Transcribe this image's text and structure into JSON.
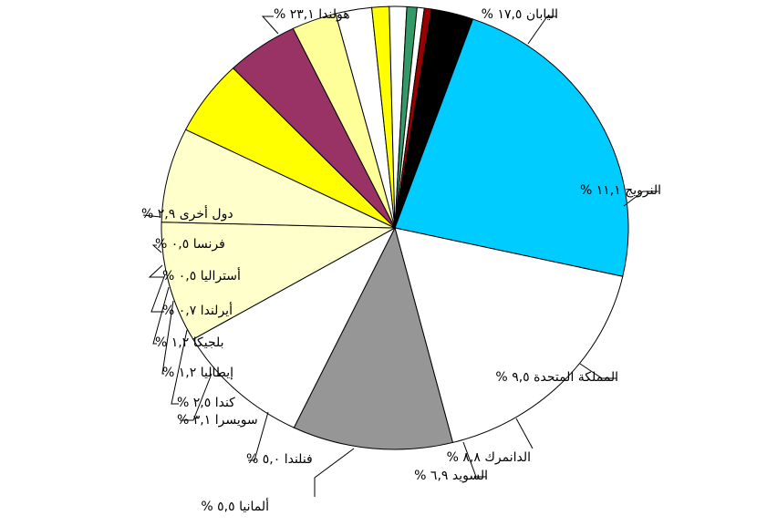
{
  "chart_data": {
    "type": "pie",
    "categories": [
      "هولندا",
      "اليابان",
      "النرويج",
      "المملكة المتحدة",
      "الدانمرك",
      "السويد",
      "ألمانيا",
      "فنلندا",
      "سويسرا",
      "كندا",
      "إيطاليا",
      "بلجيكا",
      "أيرلندا",
      "أستراليا",
      "فرنسا",
      "دول أخرى"
    ],
    "values": [
      23.1,
      17.5,
      11.1,
      9.5,
      8.8,
      6.9,
      5.5,
      5.0,
      3.1,
      2.5,
      1.2,
      1.2,
      0.7,
      0.5,
      0.5,
      2.9
    ],
    "labels": [
      "هولندا ٢٣,١ %",
      "اليابان ١٧,٥ %",
      "النرويج ١١,١ %",
      "المملكة المتحدة ٩,٥ %",
      "الدانمرك ٨,٨ %",
      "السويد ٦,٩ %",
      "ألمانيا ٥,٥ %",
      "فنلندا ٥,٠ %",
      "سويسرا ٣,١ %",
      "كندا ٢,٥ %",
      "إيطاليا ١,٢ %",
      "بلجيكا ١,٢ %",
      "أيرلندا ٠,٧ %",
      "أستراليا ٠,٥ %",
      "فرنسا ٠,٥ %",
      "دول أخرى ٢,٩ %"
    ],
    "colors": [
      "#00CCFF",
      "#FFFFFF",
      "#969696",
      "#FFFFFF",
      "#FFFFCC",
      "#FFFFCC",
      "#FFFF00",
      "#993366",
      "#FFFF99",
      "#FFFFFF",
      "#FFFF00",
      "#FFFFFF",
      "#339966",
      "#FFFFFF",
      "#990000",
      "#000000"
    ],
    "legend": "none"
  }
}
